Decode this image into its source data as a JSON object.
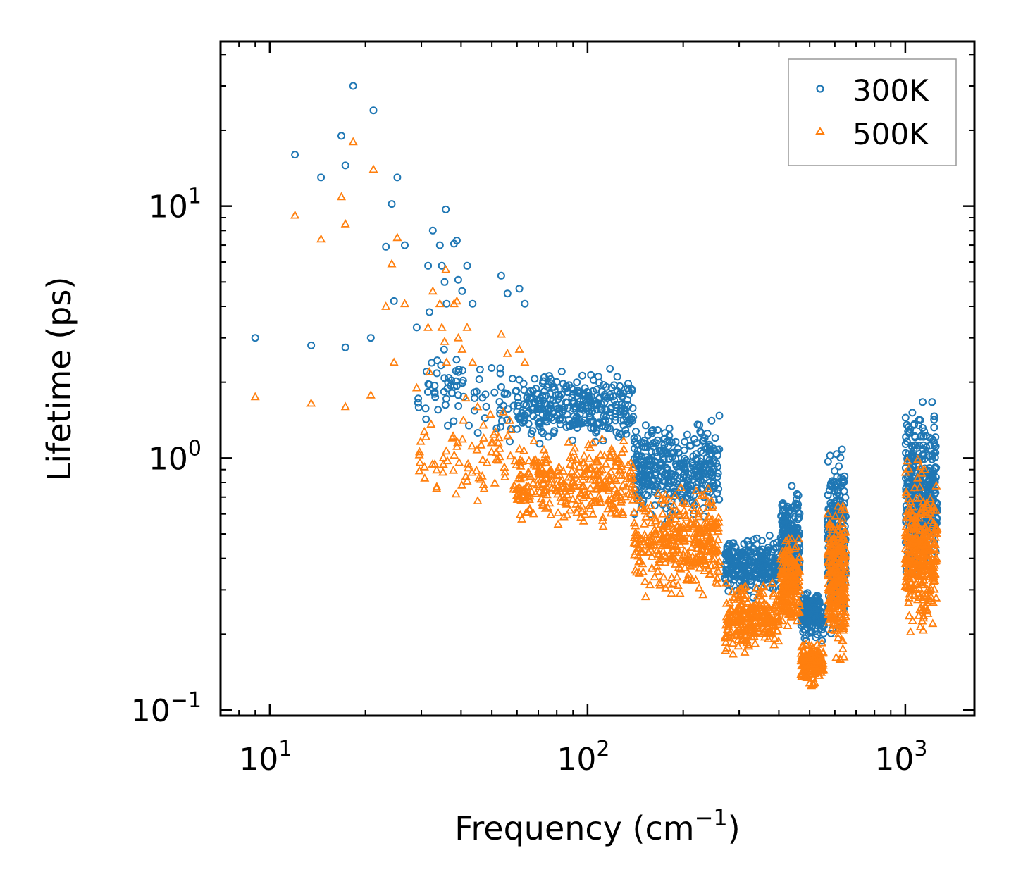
{
  "chart_data": {
    "type": "scatter",
    "title": "",
    "xlabel": "Frequency (cm",
    "xlabel_exp": "−1",
    "xlabel_end": ")",
    "ylabel": "Lifetime (ps)",
    "xscale": "log",
    "yscale": "log",
    "xlim": [
      7,
      1650
    ],
    "ylim": [
      0.095,
      45
    ],
    "x_ticks": [
      {
        "base": "10",
        "exp": "1",
        "value": 10
      },
      {
        "base": "10",
        "exp": "2",
        "value": 100
      },
      {
        "base": "10",
        "exp": "3",
        "value": 1000
      }
    ],
    "y_ticks": [
      {
        "base": "10",
        "exp": "−1",
        "value": 0.1
      },
      {
        "base": "10",
        "exp": "0",
        "value": 1
      },
      {
        "base": "10",
        "exp": "1",
        "value": 10
      }
    ],
    "legend": {
      "position": "top-right"
    },
    "series": [
      {
        "name": "300K",
        "marker": "circle-open",
        "color": "#1f77b4",
        "outliers": [
          [
            9,
            3.0
          ],
          [
            12,
            16.0
          ],
          [
            13.5,
            2.8
          ],
          [
            14.5,
            13.0
          ],
          [
            16.8,
            19.0
          ],
          [
            17.3,
            2.75
          ],
          [
            17.3,
            14.5
          ],
          [
            18.3,
            30.0
          ],
          [
            20.8,
            3.0
          ],
          [
            21.2,
            24.0
          ],
          [
            23.2,
            6.9
          ],
          [
            24.2,
            10.2
          ],
          [
            24.6,
            4.2
          ],
          [
            25.2,
            13.0
          ],
          [
            26.6,
            7.0
          ],
          [
            29,
            3.3
          ],
          [
            31.5,
            5.8
          ],
          [
            31.8,
            3.8
          ],
          [
            32.6,
            8.0
          ],
          [
            34.3,
            7.0
          ],
          [
            34.8,
            5.8
          ],
          [
            35.5,
            5.0
          ],
          [
            35.8,
            9.7
          ],
          [
            36,
            4.1
          ],
          [
            38,
            7.1
          ],
          [
            38.8,
            7.3
          ],
          [
            39.2,
            5.1
          ],
          [
            40.3,
            4.6
          ],
          [
            41.8,
            5.8
          ],
          [
            43.5,
            4.1
          ],
          [
            53.5,
            5.3
          ],
          [
            56,
            4.5
          ],
          [
            61,
            4.7
          ],
          [
            63.5,
            4.1
          ]
        ],
        "bands": [
          {
            "x_start": 29,
            "x_end": 60,
            "y_low": 1.0,
            "y_high": 3.2,
            "n": 80
          },
          {
            "x_start": 60,
            "x_end": 140,
            "y_low": 1.05,
            "y_high": 2.4,
            "n": 320
          },
          {
            "x_start": 140,
            "x_end": 260,
            "y_low": 0.5,
            "y_high": 1.6,
            "n": 360
          },
          {
            "x_start": 270,
            "x_end": 400,
            "y_low": 0.27,
            "y_high": 0.52,
            "n": 260
          },
          {
            "x_start": 405,
            "x_end": 465,
            "y_low": 0.25,
            "y_high": 0.86,
            "n": 200
          },
          {
            "x_start": 470,
            "x_end": 555,
            "y_low": 0.18,
            "y_high": 0.32,
            "n": 160
          },
          {
            "x_start": 570,
            "x_end": 650,
            "y_low": 0.18,
            "y_high": 1.2,
            "n": 260
          },
          {
            "x_start": 1000,
            "x_end": 1260,
            "y_low": 0.3,
            "y_high": 1.85,
            "n": 340
          }
        ]
      },
      {
        "name": "500K",
        "marker": "triangle-open",
        "color": "#ff7f0e",
        "outliers": [
          [
            9,
            1.75
          ],
          [
            12,
            9.2
          ],
          [
            13.5,
            1.65
          ],
          [
            14.5,
            7.4
          ],
          [
            16.8,
            10.9
          ],
          [
            17.3,
            1.6
          ],
          [
            17.3,
            8.5
          ],
          [
            18.3,
            18.0
          ],
          [
            20.8,
            1.78
          ],
          [
            21.2,
            14.0
          ],
          [
            23.2,
            4.0
          ],
          [
            24.2,
            5.9
          ],
          [
            24.6,
            2.4
          ],
          [
            25.2,
            7.5
          ],
          [
            26.6,
            4.1
          ],
          [
            29,
            1.9
          ],
          [
            31.5,
            3.3
          ],
          [
            31.8,
            2.2
          ],
          [
            32.6,
            4.6
          ],
          [
            34.3,
            4.1
          ],
          [
            34.8,
            3.3
          ],
          [
            35.5,
            2.9
          ],
          [
            35.8,
            5.6
          ],
          [
            36,
            2.4
          ],
          [
            38,
            4.1
          ],
          [
            38.8,
            4.2
          ],
          [
            39.2,
            3.0
          ],
          [
            40.3,
            2.7
          ],
          [
            41.8,
            3.3
          ],
          [
            43.5,
            2.4
          ],
          [
            53.5,
            3.1
          ],
          [
            56,
            2.6
          ],
          [
            61,
            2.7
          ],
          [
            63.5,
            2.4
          ]
        ],
        "bands": [
          {
            "x_start": 29,
            "x_end": 60,
            "y_low": 0.55,
            "y_high": 1.9,
            "n": 80
          },
          {
            "x_start": 60,
            "x_end": 140,
            "y_low": 0.48,
            "y_high": 1.3,
            "n": 320
          },
          {
            "x_start": 140,
            "x_end": 260,
            "y_low": 0.26,
            "y_high": 0.85,
            "n": 360
          },
          {
            "x_start": 270,
            "x_end": 400,
            "y_low": 0.16,
            "y_high": 0.34,
            "n": 260
          },
          {
            "x_start": 405,
            "x_end": 465,
            "y_low": 0.2,
            "y_high": 0.52,
            "n": 200
          },
          {
            "x_start": 470,
            "x_end": 555,
            "y_low": 0.12,
            "y_high": 0.2,
            "n": 160
          },
          {
            "x_start": 570,
            "x_end": 650,
            "y_low": 0.13,
            "y_high": 0.78,
            "n": 260
          },
          {
            "x_start": 1000,
            "x_end": 1260,
            "y_low": 0.17,
            "y_high": 1.1,
            "n": 340
          }
        ]
      }
    ]
  }
}
